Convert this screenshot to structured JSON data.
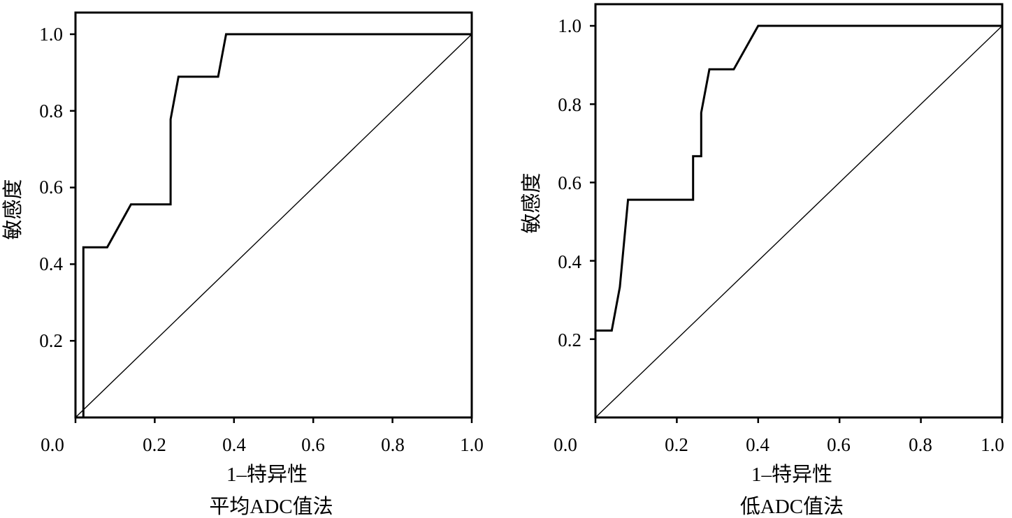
{
  "chart_data": [
    {
      "type": "line",
      "caption": "平均ADC值法",
      "xlabel": "1–特异性",
      "ylabel": "敏感度",
      "xlim": [
        0,
        1
      ],
      "ylim": [
        0,
        1
      ],
      "x_ticks": [
        "0.0",
        "0.2",
        "0.4",
        "0.6",
        "0.8",
        "1.0"
      ],
      "y_ticks": [
        "0.2",
        "0.4",
        "0.6",
        "0.8",
        "1.0"
      ],
      "grid": false,
      "series": [
        {
          "role": "roc",
          "x": [
            0,
            0.02,
            0.02,
            0.08,
            0.14,
            0.24,
            0.24,
            0.26,
            0.36,
            0.38,
            1.0
          ],
          "y": [
            0,
            0,
            0.444,
            0.444,
            0.556,
            0.556,
            0.778,
            0.889,
            0.889,
            1.0,
            1.0
          ]
        },
        {
          "role": "reference",
          "x": [
            0,
            1
          ],
          "y": [
            0,
            1
          ]
        }
      ]
    },
    {
      "type": "line",
      "caption": "低ADC值法",
      "xlabel": "1–特异性",
      "ylabel": "敏感度",
      "xlim": [
        0,
        1
      ],
      "ylim": [
        0,
        1
      ],
      "x_ticks": [
        "0.0",
        "0.2",
        "0.4",
        "0.6",
        "0.8",
        "1.0"
      ],
      "y_ticks": [
        "0.2",
        "0.4",
        "0.6",
        "0.8",
        "1.0"
      ],
      "grid": false,
      "series": [
        {
          "role": "roc",
          "x": [
            0,
            0,
            0.04,
            0.06,
            0.08,
            0.24,
            0.24,
            0.26,
            0.26,
            0.28,
            0.34,
            0.4,
            1.0
          ],
          "y": [
            0,
            0.222,
            0.222,
            0.333,
            0.556,
            0.556,
            0.667,
            0.667,
            0.778,
            0.889,
            0.889,
            1.0,
            1.0
          ]
        },
        {
          "role": "reference",
          "x": [
            0,
            1
          ],
          "y": [
            0,
            1
          ]
        }
      ]
    }
  ]
}
